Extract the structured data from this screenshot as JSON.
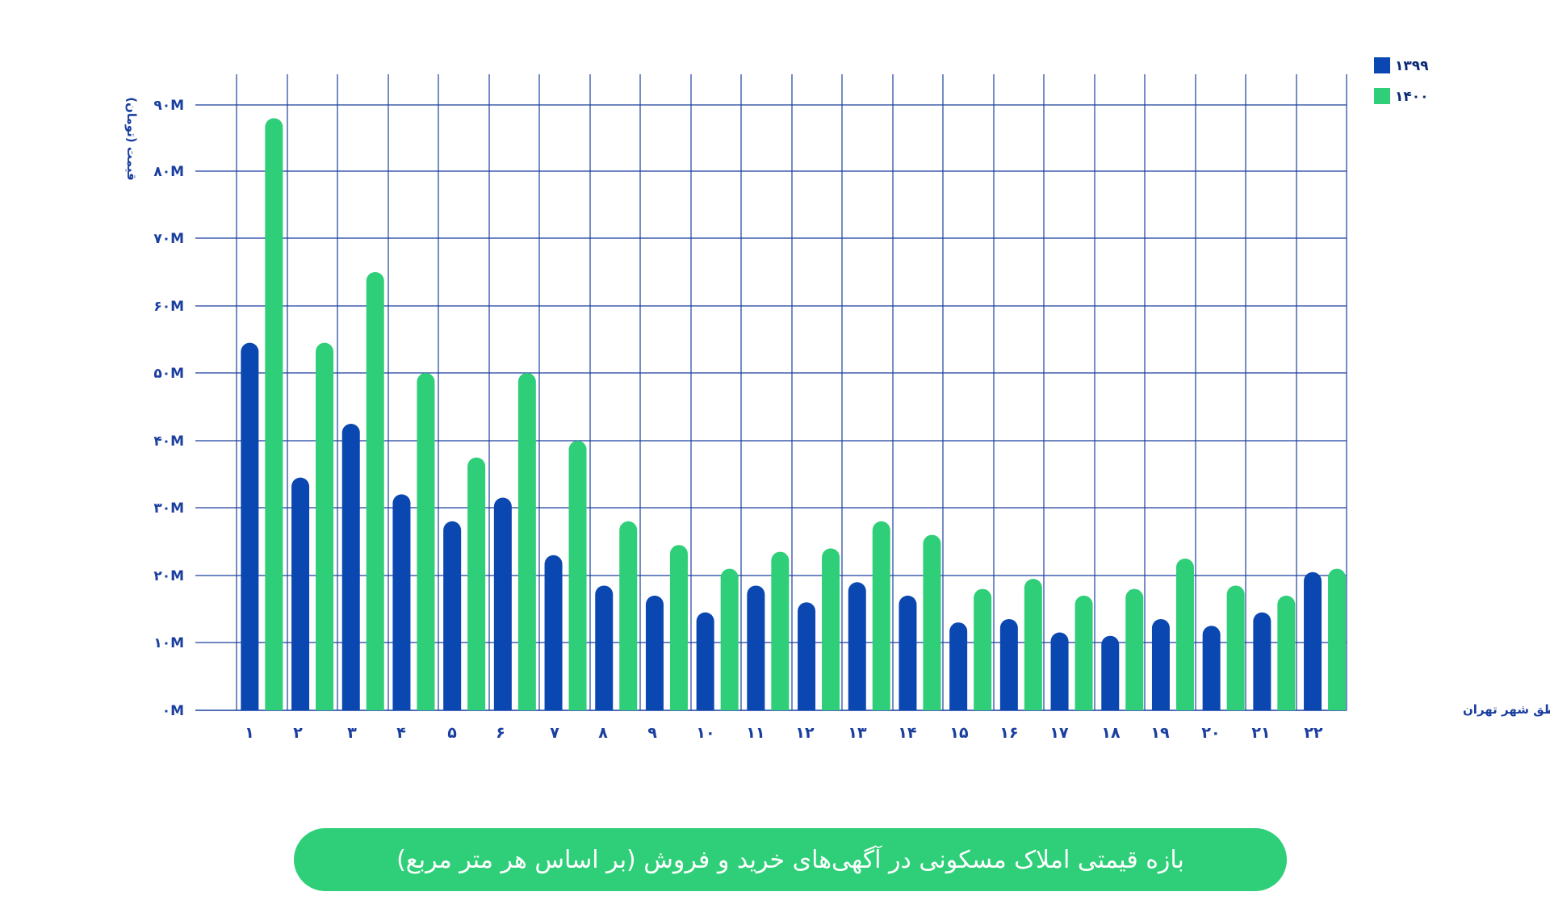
{
  "colors": {
    "series_1399": "#0a47b0",
    "series_1400": "#2ecf78",
    "grid": "#1a3f9e",
    "text": "#1a3f9e",
    "pill": "#2ecf78"
  },
  "chart_data": {
    "type": "bar",
    "title": "بازه قیمتی املاک مسکونی در آگهی‌های خرید و فروش (بر اساس هر متر مربع)",
    "xlabel": "مناطق شهر تهران",
    "ylabel": "قیمت (تومان)",
    "ylim": [
      0,
      90
    ],
    "y_ticks": [
      {
        "value": 0,
        "label": "۰M"
      },
      {
        "value": 10,
        "label": "۱۰M"
      },
      {
        "value": 20,
        "label": "۲۰M"
      },
      {
        "value": 30,
        "label": "۳۰M"
      },
      {
        "value": 40,
        "label": "۴۰M"
      },
      {
        "value": 50,
        "label": "۵۰M"
      },
      {
        "value": 60,
        "label": "۶۰M"
      },
      {
        "value": 70,
        "label": "۷۰M"
      },
      {
        "value": 80,
        "label": "۸۰M"
      },
      {
        "value": 90,
        "label": "۹۰M"
      }
    ],
    "categories": [
      "۱",
      "۲",
      "۳",
      "۴",
      "۵",
      "۶",
      "۷",
      "۸",
      "۹",
      "۱۰",
      "۱۱",
      "۱۲",
      "۱۳",
      "۱۴",
      "۱۵",
      "۱۶",
      "۱۷",
      "۱۸",
      "۱۹",
      "۲۰",
      "۲۱",
      "۲۲"
    ],
    "series": [
      {
        "name": "۱۳۹۹",
        "values": [
          54.5,
          34.5,
          42.5,
          32,
          28,
          31.5,
          23,
          18.5,
          17,
          14.5,
          18.5,
          16,
          19,
          17,
          13,
          13.5,
          11.5,
          11,
          13.5,
          12.5,
          14.5,
          20.5
        ]
      },
      {
        "name": "۱۴۰۰",
        "values": [
          88,
          54.5,
          65,
          50,
          37.5,
          50,
          40,
          28,
          24.5,
          21,
          23.5,
          24,
          28,
          26,
          18,
          19.5,
          17,
          18,
          22.5,
          18.5,
          17,
          21
        ]
      }
    ],
    "legend_position": "top-right",
    "grid": true
  }
}
